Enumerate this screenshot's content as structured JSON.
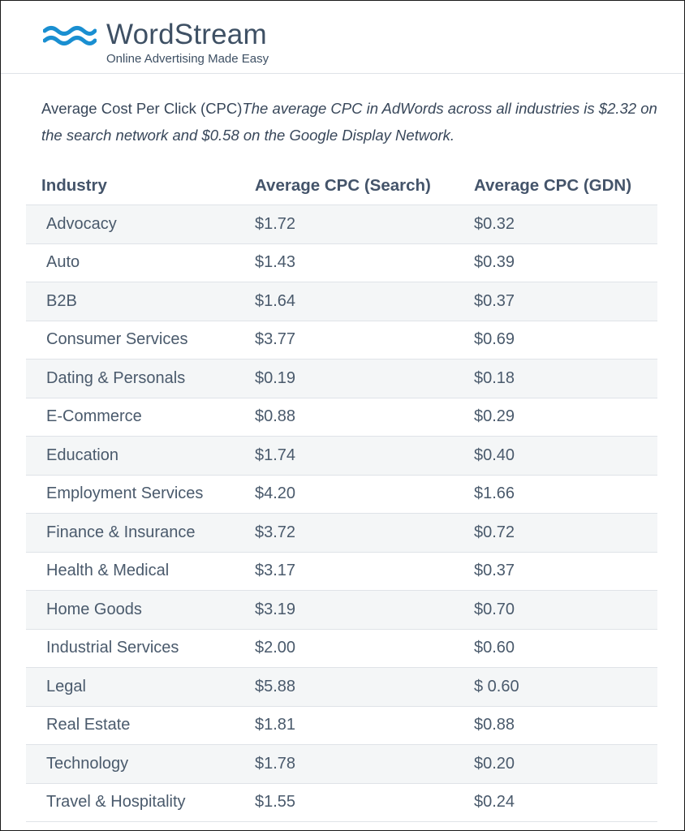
{
  "brand": {
    "name": "WordStream",
    "tagline": "Online Advertising Made Easy",
    "colors": {
      "wave": "#1a8fd1",
      "text": "#3e5064"
    }
  },
  "intro": {
    "title": "Average Cost Per Click (CPC)",
    "summary": "The average CPC in AdWords across all industries is $2.32 on the search network and $0.58 on the Google Display Network."
  },
  "table": {
    "headers": [
      "Industry",
      "Average CPC (Search)",
      "Average CPC (GDN)"
    ],
    "rows": [
      [
        "Advocacy",
        "$1.72",
        "$0.32"
      ],
      [
        "Auto",
        "$1.43",
        "$0.39"
      ],
      [
        "B2B",
        "$1.64",
        "$0.37"
      ],
      [
        "Consumer Services",
        "$3.77",
        "$0.69"
      ],
      [
        "Dating & Personals",
        "$0.19",
        "$0.18"
      ],
      [
        "E-Commerce",
        "$0.88",
        "$0.29"
      ],
      [
        "Education",
        "$1.74",
        "$0.40"
      ],
      [
        "Employment Services",
        "$4.20",
        "$1.66"
      ],
      [
        "Finance & Insurance",
        "$3.72",
        "$0.72"
      ],
      [
        "Health & Medical",
        "$3.17",
        "$0.37"
      ],
      [
        "Home Goods",
        "$3.19",
        "$0.70"
      ],
      [
        "Industrial Services",
        "$2.00",
        "$0.60"
      ],
      [
        "Legal",
        "$5.88",
        "$ 0.60"
      ],
      [
        "Real Estate",
        "$1.81",
        "$0.88"
      ],
      [
        "Technology",
        "$1.78",
        "$0.20"
      ],
      [
        "Travel & Hospitality",
        "$1.55",
        "$0.24"
      ]
    ]
  }
}
